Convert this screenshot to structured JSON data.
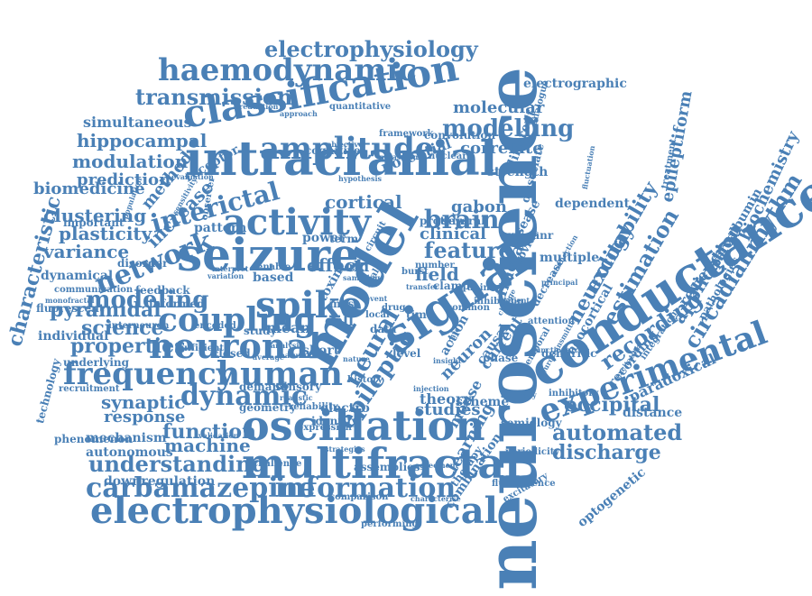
{
  "colors": {
    "primary": "#4a80b6",
    "background": "#ffffff"
  },
  "words": [
    {
      "text": "neuroscience"
    },
    {
      "text": "seizure"
    },
    {
      "text": "intracranial"
    },
    {
      "text": "conductance"
    },
    {
      "text": "classification"
    },
    {
      "text": "signal"
    },
    {
      "text": "model"
    },
    {
      "text": "activity"
    },
    {
      "text": "neuronal"
    },
    {
      "text": "experimental"
    },
    {
      "text": "oscillation"
    },
    {
      "text": "multifractal"
    },
    {
      "text": "electrophysiological"
    },
    {
      "text": "spike"
    },
    {
      "text": "coupling"
    },
    {
      "text": "frequency"
    },
    {
      "text": "human"
    },
    {
      "text": "amplitude"
    },
    {
      "text": "haemodynamic"
    },
    {
      "text": "electrophysiology"
    },
    {
      "text": "carbamazepine"
    },
    {
      "text": "information"
    },
    {
      "text": "network"
    },
    {
      "text": "interictal"
    },
    {
      "text": "dynamic"
    },
    {
      "text": "automated"
    },
    {
      "text": "transmission"
    },
    {
      "text": "modelling"
    },
    {
      "text": "modeling"
    },
    {
      "text": "understanding"
    },
    {
      "text": "discharge"
    },
    {
      "text": "recording"
    },
    {
      "text": "epileptic"
    },
    {
      "text": "neural"
    },
    {
      "text": "feature"
    },
    {
      "text": "occipital"
    },
    {
      "text": "function"
    },
    {
      "text": "circadianrhythm"
    },
    {
      "text": "estimation"
    },
    {
      "text": "neurology"
    },
    {
      "text": "excitability"
    },
    {
      "text": "application"
    },
    {
      "text": "machine"
    },
    {
      "text": "synaptic"
    },
    {
      "text": "properties"
    },
    {
      "text": "science"
    },
    {
      "text": "pyramidal"
    },
    {
      "text": "variance"
    },
    {
      "text": "clustering"
    },
    {
      "text": "plasticity"
    },
    {
      "text": "biomedicine"
    },
    {
      "text": "modulation"
    },
    {
      "text": "hippocampal"
    },
    {
      "text": "prediction"
    },
    {
      "text": "simultaneous"
    },
    {
      "text": "electrographic"
    },
    {
      "text": "molecular"
    },
    {
      "text": "correlate"
    },
    {
      "text": "brain"
    },
    {
      "text": "clinical"
    },
    {
      "text": "cortical"
    },
    {
      "text": "field"
    },
    {
      "text": "gabon"
    },
    {
      "text": "mouse"
    },
    {
      "text": "studies"
    },
    {
      "text": "theory"
    },
    {
      "text": "learning"
    },
    {
      "text": "response"
    },
    {
      "text": "mechanism"
    },
    {
      "text": "autonomous"
    },
    {
      "text": "downregulation"
    },
    {
      "text": "characteristic"
    },
    {
      "text": "technology"
    },
    {
      "text": "dynamical"
    },
    {
      "text": "individual"
    },
    {
      "text": "fluorescent"
    },
    {
      "text": "biochemistry"
    },
    {
      "text": "parvalbumin"
    },
    {
      "text": "reviewer"
    },
    {
      "text": "epileptiform"
    },
    {
      "text": "paradoxical"
    },
    {
      "text": "distance"
    },
    {
      "text": "optogenetic"
    },
    {
      "text": "current"
    },
    {
      "text": "increase"
    },
    {
      "text": "method"
    },
    {
      "text": "important"
    },
    {
      "text": "effect"
    },
    {
      "text": "mean"
    },
    {
      "text": "short"
    },
    {
      "text": "cell"
    },
    {
      "text": "bold"
    },
    {
      "text": "multiple"
    },
    {
      "text": "dendritic"
    },
    {
      "text": "fractal"
    },
    {
      "text": "neuron"
    },
    {
      "text": "causal"
    },
    {
      "text": "phase"
    },
    {
      "text": "action"
    },
    {
      "text": "scheme"
    },
    {
      "text": "semiology"
    },
    {
      "text": "combination"
    },
    {
      "text": "therapy"
    },
    {
      "text": "different"
    },
    {
      "text": "dissociate"
    },
    {
      "text": "disease"
    },
    {
      "text": "strength"
    },
    {
      "text": "potential"
    },
    {
      "text": "receptor"
    },
    {
      "text": "cognitive"
    },
    {
      "text": "convolution"
    },
    {
      "text": "framework"
    },
    {
      "text": "pattern"
    },
    {
      "text": "disorder"
    },
    {
      "text": "feedback"
    },
    {
      "text": "informed"
    },
    {
      "text": "interneuron"
    },
    {
      "text": "sufficient"
    },
    {
      "text": "encoded"
    },
    {
      "text": "study"
    },
    {
      "text": "closed"
    },
    {
      "text": "demand"
    },
    {
      "text": "sensory"
    },
    {
      "text": "geometry"
    },
    {
      "text": "validation"
    },
    {
      "text": "challenge"
    },
    {
      "text": "assemblies"
    },
    {
      "text": "comparison"
    },
    {
      "text": "characterise"
    },
    {
      "text": "performing"
    },
    {
      "text": "phenomenon"
    },
    {
      "text": "recruitment"
    },
    {
      "text": "underlying"
    },
    {
      "text": "communication"
    },
    {
      "text": "monofractal"
    },
    {
      "text": "reliability"
    },
    {
      "text": "electro"
    },
    {
      "text": "identify"
    },
    {
      "text": "realistic"
    },
    {
      "text": "based"
    },
    {
      "text": "enable"
    },
    {
      "text": "power"
    },
    {
      "text": "term"
    },
    {
      "text": "toxin"
    },
    {
      "text": "mas"
    },
    {
      "text": "data"
    },
    {
      "text": "level"
    },
    {
      "text": "time"
    },
    {
      "text": "local"
    },
    {
      "text": "protein"
    },
    {
      "text": "several"
    },
    {
      "text": "gabaanr"
    },
    {
      "text": "provide"
    },
    {
      "text": "dependent"
    },
    {
      "text": "treatment"
    },
    {
      "text": "neocortical"
    },
    {
      "text": "recording"
    },
    {
      "text": "decrease"
    },
    {
      "text": "attention"
    },
    {
      "text": "inhibitory"
    },
    {
      "text": "fluorescence"
    },
    {
      "text": "excitatory"
    },
    {
      "text": "periodicity"
    },
    {
      "text": "functional"
    },
    {
      "text": "temporal"
    },
    {
      "text": "quantitative"
    },
    {
      "text": "analogue"
    },
    {
      "text": "nuclear"
    },
    {
      "text": "clamp"
    },
    {
      "text": "burst"
    },
    {
      "text": "number"
    },
    {
      "text": "animal"
    },
    {
      "text": "inhibition"
    },
    {
      "text": "patient"
    },
    {
      "text": "common"
    },
    {
      "text": "insight"
    },
    {
      "text": "integration"
    },
    {
      "text": "pathologies"
    },
    {
      "text": "variation"
    },
    {
      "text": "history"
    },
    {
      "text": "reduction"
    },
    {
      "text": "approach"
    },
    {
      "text": "evaluation"
    },
    {
      "text": "observer"
    },
    {
      "text": "population"
    },
    {
      "text": "sensitivity"
    },
    {
      "text": "hypothesis"
    },
    {
      "text": "expression"
    },
    {
      "text": "strategies"
    },
    {
      "text": "agreement"
    },
    {
      "text": "injection"
    },
    {
      "text": "drug"
    },
    {
      "text": "event"
    },
    {
      "text": "scale"
    },
    {
      "text": "circuit"
    },
    {
      "text": "objective"
    },
    {
      "text": "accuracy"
    },
    {
      "text": "interpret"
    },
    {
      "text": "natural"
    },
    {
      "text": "analysis"
    },
    {
      "text": "average"
    },
    {
      "text": "potassium"
    },
    {
      "text": "fluctuation"
    },
    {
      "text": "excitation"
    },
    {
      "text": "neurotransmitter"
    },
    {
      "text": "principal"
    },
    {
      "text": "connection"
    },
    {
      "text": "sampling"
    },
    {
      "text": "transfer"
    },
    {
      "text": "rate"
    },
    {
      "text": "change"
    },
    {
      "text": "nature"
    }
  ]
}
